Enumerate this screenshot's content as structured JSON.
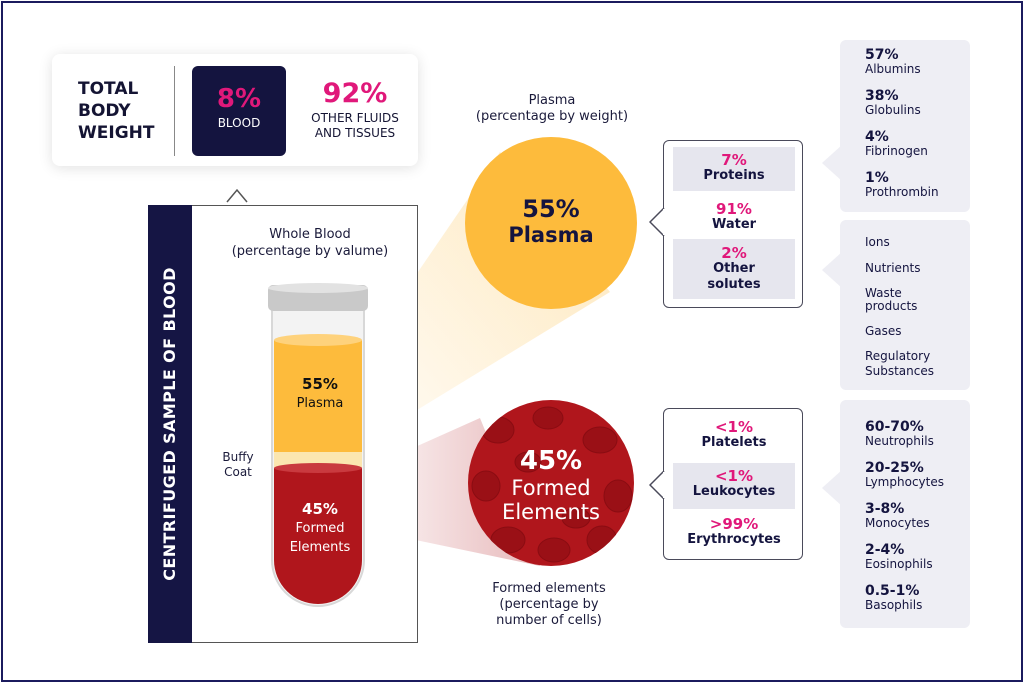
{
  "total_body_weight": {
    "title_lines": [
      "TOTAL",
      "BODY",
      "WEIGHT"
    ],
    "blood_pct": "8%",
    "blood_label": "BLOOD",
    "other_pct": "92%",
    "other_label_lines": [
      "OTHER FLUIDS",
      "AND TISSUES"
    ]
  },
  "sample": {
    "side_title": "CENTRIFUGED SAMPLE OF BLOOD",
    "caption_lines": [
      "Whole Blood",
      "(percentage by valume)"
    ],
    "buffy_lines": [
      "Buffy",
      "Coat"
    ],
    "plasma_pct": "55%",
    "plasma_label": "Plasma",
    "formed_pct": "45%",
    "formed_label_lines": [
      "Formed",
      "Elements"
    ]
  },
  "plasma": {
    "caption_lines": [
      "Plasma",
      "(percentage by weight)"
    ],
    "pct": "55%",
    "label": "Plasma",
    "components": [
      {
        "pct": "7%",
        "label": "Proteins"
      },
      {
        "pct": "91%",
        "label": "Water"
      },
      {
        "pct": "2%",
        "label_lines": [
          "Other",
          "solutes"
        ]
      }
    ],
    "proteins": [
      {
        "pct": "57%",
        "label": "Albumins"
      },
      {
        "pct": "38%",
        "label": "Globulins"
      },
      {
        "pct": "4%",
        "label": "Fibrinogen"
      },
      {
        "pct": "1%",
        "label": "Prothrombin"
      }
    ],
    "solutes": [
      "Ions",
      "Nutrients",
      "Waste",
      "products",
      "Gases",
      "Regulatory",
      "Substances"
    ]
  },
  "formed": {
    "pct": "45%",
    "label_lines": [
      "Formed",
      "Elements"
    ],
    "caption_lines": [
      "Formed elements",
      "(percentage by",
      "number of cells)"
    ],
    "components": [
      {
        "pct": "<1%",
        "label": "Platelets"
      },
      {
        "pct": "<1%",
        "label": "Leukocytes"
      },
      {
        "pct": ">99%",
        "label": "Erythrocytes"
      }
    ],
    "leukocytes": [
      {
        "pct": "60-70%",
        "label": "Neutrophils"
      },
      {
        "pct": "20-25%",
        "label": "Lymphocytes"
      },
      {
        "pct": "3-8%",
        "label": "Monocytes"
      },
      {
        "pct": "2-4%",
        "label": "Eosinophils"
      },
      {
        "pct": "0.5-1%",
        "label": "Basophils"
      }
    ]
  },
  "colors": {
    "navy": "#14143f",
    "magenta": "#e0187a",
    "plasma_yellow": "#fdbb3c",
    "blood_red": "#b0161c"
  }
}
